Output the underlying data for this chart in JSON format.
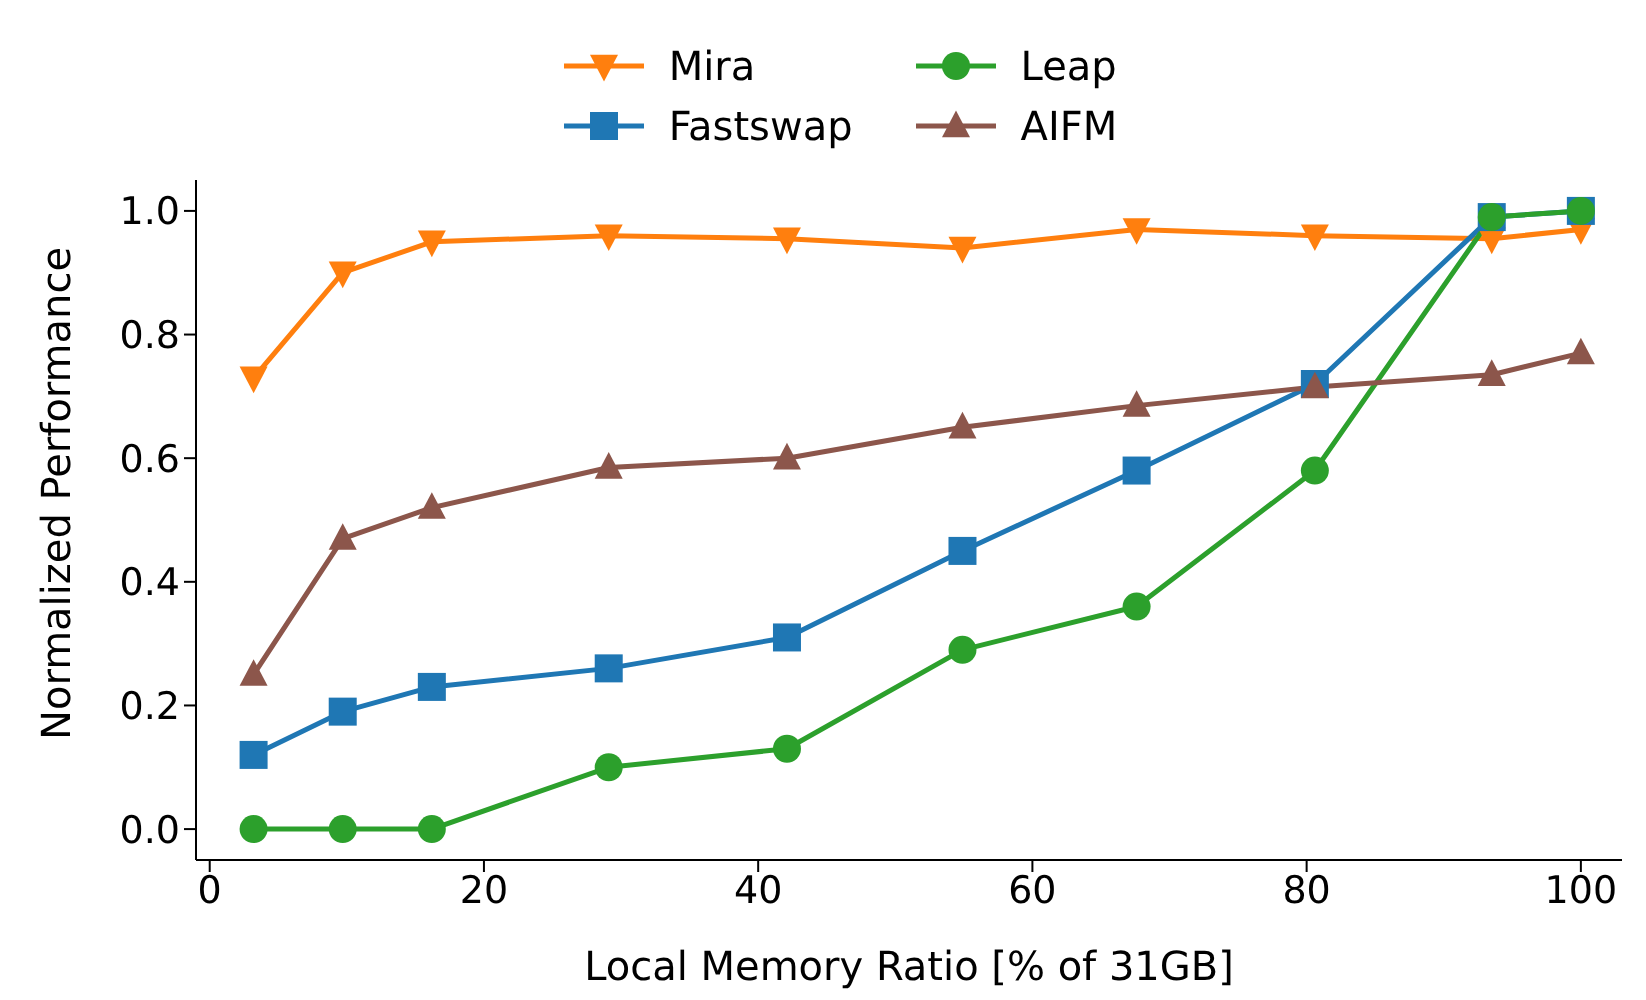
{
  "chart_data": {
    "type": "line",
    "xlabel": "Local Memory Ratio [% of 31GB]",
    "ylabel": "Normalized Performance",
    "x": [
      3.2,
      9.7,
      16.2,
      29.1,
      42.1,
      54.9,
      67.6,
      80.6,
      93.5,
      100
    ],
    "xlim": [
      -1,
      103
    ],
    "xticks": [
      0,
      20,
      40,
      60,
      80,
      100
    ],
    "ylim": [
      -0.05,
      1.05
    ],
    "yticks": [
      {
        "value": 0,
        "label": "0.0"
      },
      {
        "value": 0.2,
        "label": "0.2"
      },
      {
        "value": 0.4,
        "label": "0.4"
      },
      {
        "value": 0.6,
        "label": "0.6"
      },
      {
        "value": 0.8,
        "label": "0.8"
      },
      {
        "value": 1,
        "label": "1.0"
      }
    ],
    "grid": false,
    "legend": "top",
    "series": [
      {
        "name": "Mira",
        "color": "#ff7f0e",
        "marker": "triangle_down",
        "values": [
          0.73,
          0.9,
          0.95,
          0.96,
          0.955,
          0.94,
          0.97,
          0.96,
          0.955,
          0.97
        ]
      },
      {
        "name": "Fastswap",
        "color": "#1f77b4",
        "marker": "square",
        "values": [
          0.12,
          0.19,
          0.23,
          0.26,
          0.31,
          0.45,
          0.58,
          0.72,
          0.99,
          1.0
        ]
      },
      {
        "name": "Leap",
        "color": "#2ca02c",
        "marker": "circle",
        "values": [
          0,
          0,
          0,
          0.1,
          0.13,
          0.29,
          0.36,
          0.58,
          0.99,
          1.0
        ]
      },
      {
        "name": "AIFM",
        "color": "#8c564b",
        "marker": "triangle",
        "values": [
          0.25,
          0.47,
          0.52,
          0.585,
          0.6,
          0.65,
          0.685,
          0.715,
          0.735,
          0.77
        ]
      }
    ]
  }
}
